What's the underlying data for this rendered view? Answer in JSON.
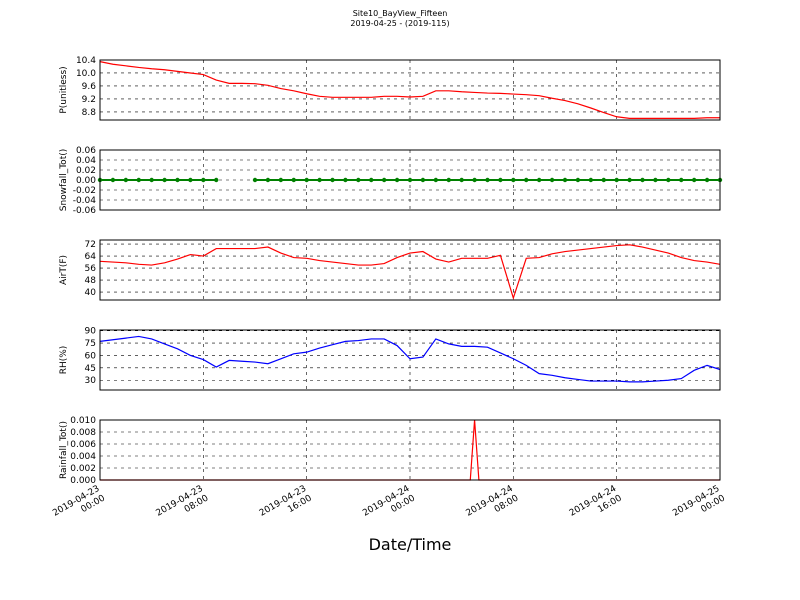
{
  "chart_data": [
    {
      "type": "line",
      "title": "Site10_BayView_Fifteen",
      "subtitle": "2019-04-25 - (2019-115)",
      "ylabel": "P(unitless)",
      "color": "#ff0000",
      "grid": true,
      "xlim": [
        "2019-04-23 00:00",
        "2019-04-25 00:00"
      ],
      "xticks": [
        "2019-04-23 00:00",
        "2019-04-23 08:00",
        "2019-04-23 16:00",
        "2019-04-24 00:00",
        "2019-04-24 08:00",
        "2019-04-24 16:00",
        "2019-04-25 00:00"
      ],
      "ylim": [
        8.55,
        10.4
      ],
      "yticks": [
        8.8,
        9.2,
        9.6,
        {
          "value": 10,
          "label": "10.0"
        },
        10.4
      ],
      "x": [
        "2019-04-23 00:00",
        "2019-04-23 01:00",
        "2019-04-23 02:00",
        "2019-04-23 03:00",
        "2019-04-23 04:00",
        "2019-04-23 05:00",
        "2019-04-23 06:00",
        "2019-04-23 07:00",
        "2019-04-23 08:00",
        "2019-04-23 09:00",
        "2019-04-23 10:00",
        "2019-04-23 11:00",
        "2019-04-23 12:00",
        "2019-04-23 13:00",
        "2019-04-23 14:00",
        "2019-04-23 15:00",
        "2019-04-23 16:00",
        "2019-04-23 17:00",
        "2019-04-23 18:00",
        "2019-04-23 19:00",
        "2019-04-23 20:00",
        "2019-04-23 21:00",
        "2019-04-23 22:00",
        "2019-04-23 23:00",
        "2019-04-24 00:00",
        "2019-04-24 01:00",
        "2019-04-24 02:00",
        "2019-04-24 03:00",
        "2019-04-24 04:00",
        "2019-04-24 05:00",
        "2019-04-24 06:00",
        "2019-04-24 07:00",
        "2019-04-24 08:00",
        "2019-04-24 09:00",
        "2019-04-24 10:00",
        "2019-04-24 11:00",
        "2019-04-24 12:00",
        "2019-04-24 13:00",
        "2019-04-24 14:00",
        "2019-04-24 15:00",
        "2019-04-24 16:00",
        "2019-04-24 17:00",
        "2019-04-24 18:00",
        "2019-04-24 19:00",
        "2019-04-24 20:00",
        "2019-04-24 21:00",
        "2019-04-24 22:00",
        "2019-04-24 23:00",
        "2019-04-25 00:00"
      ],
      "values": [
        10.35,
        10.27,
        10.22,
        10.17,
        10.13,
        10.1,
        10.05,
        10.0,
        9.95,
        9.78,
        9.68,
        9.68,
        9.67,
        9.62,
        9.52,
        9.45,
        9.36,
        9.28,
        9.25,
        9.25,
        9.25,
        9.25,
        9.28,
        9.28,
        9.26,
        9.28,
        9.45,
        9.45,
        9.42,
        9.4,
        9.38,
        9.37,
        9.35,
        9.33,
        9.3,
        9.22,
        9.15,
        9.05,
        8.92,
        8.78,
        8.65,
        8.6,
        8.6,
        8.6,
        8.6,
        8.6,
        8.6,
        8.62,
        8.62
      ]
    },
    {
      "type": "line",
      "ylabel": "Snowfall_Tot()",
      "color": "#008000",
      "markers": true,
      "grid": true,
      "xlim": [
        "2019-04-23 00:00",
        "2019-04-25 00:00"
      ],
      "xticks": [
        "2019-04-23 00:00",
        "2019-04-23 08:00",
        "2019-04-23 16:00",
        "2019-04-24 00:00",
        "2019-04-24 08:00",
        "2019-04-24 16:00",
        "2019-04-25 00:00"
      ],
      "ylim": [
        -0.06,
        0.06
      ],
      "yticks": [
        -0.06,
        -0.04,
        -0.02,
        {
          "value": 0,
          "label": "0.00"
        },
        0.02,
        0.04,
        0.06
      ],
      "x": [
        "2019-04-23 00:00",
        "2019-04-23 01:00",
        "2019-04-23 02:00",
        "2019-04-23 03:00",
        "2019-04-23 04:00",
        "2019-04-23 05:00",
        "2019-04-23 06:00",
        "2019-04-23 07:00",
        "2019-04-23 08:00",
        "2019-04-23 09:00",
        "2019-04-23 10:00",
        "2019-04-23 11:00",
        "2019-04-23 12:00",
        "2019-04-23 13:00",
        "2019-04-23 14:00",
        "2019-04-23 15:00",
        "2019-04-23 16:00",
        "2019-04-23 17:00",
        "2019-04-23 18:00",
        "2019-04-23 19:00",
        "2019-04-23 20:00",
        "2019-04-23 21:00",
        "2019-04-23 22:00",
        "2019-04-23 23:00",
        "2019-04-24 00:00",
        "2019-04-24 01:00",
        "2019-04-24 02:00",
        "2019-04-24 03:00",
        "2019-04-24 04:00",
        "2019-04-24 05:00",
        "2019-04-24 06:00",
        "2019-04-24 07:00",
        "2019-04-24 08:00",
        "2019-04-24 09:00",
        "2019-04-24 10:00",
        "2019-04-24 11:00",
        "2019-04-24 12:00",
        "2019-04-24 13:00",
        "2019-04-24 14:00",
        "2019-04-24 15:00",
        "2019-04-24 16:00",
        "2019-04-24 17:00",
        "2019-04-24 18:00",
        "2019-04-24 19:00",
        "2019-04-24 20:00",
        "2019-04-24 21:00",
        "2019-04-24 22:00",
        "2019-04-24 23:00",
        "2019-04-25 00:00"
      ],
      "values": [
        0,
        0,
        0,
        0,
        0,
        0,
        0,
        0,
        0,
        0,
        null,
        null,
        0,
        0,
        0,
        0,
        0,
        0,
        0,
        0,
        0,
        0,
        0,
        0,
        0,
        0,
        0,
        0,
        0,
        0,
        0,
        0,
        0,
        0,
        0,
        0,
        0,
        0,
        0,
        0,
        0,
        0,
        0,
        0,
        0,
        0,
        0,
        0,
        0
      ]
    },
    {
      "type": "line",
      "ylabel": "AirT(F)",
      "color": "#ff0000",
      "grid": true,
      "xlim": [
        "2019-04-23 00:00",
        "2019-04-25 00:00"
      ],
      "xticks": [
        "2019-04-23 00:00",
        "2019-04-23 08:00",
        "2019-04-23 16:00",
        "2019-04-24 00:00",
        "2019-04-24 08:00",
        "2019-04-24 16:00",
        "2019-04-25 00:00"
      ],
      "ylim": [
        34.7,
        74.7
      ],
      "yticks": [
        40,
        48,
        56,
        64,
        72
      ],
      "x": [
        "2019-04-23 00:00",
        "2019-04-23 01:00",
        "2019-04-23 02:00",
        "2019-04-23 03:00",
        "2019-04-23 04:00",
        "2019-04-23 05:00",
        "2019-04-23 06:00",
        "2019-04-23 07:00",
        "2019-04-23 08:00",
        "2019-04-23 09:00",
        "2019-04-23 10:00",
        "2019-04-23 11:00",
        "2019-04-23 12:00",
        "2019-04-23 13:00",
        "2019-04-23 14:00",
        "2019-04-23 15:00",
        "2019-04-23 16:00",
        "2019-04-23 17:00",
        "2019-04-23 18:00",
        "2019-04-23 19:00",
        "2019-04-23 20:00",
        "2019-04-23 21:00",
        "2019-04-23 22:00",
        "2019-04-23 23:00",
        "2019-04-24 00:00",
        "2019-04-24 01:00",
        "2019-04-24 02:00",
        "2019-04-24 03:00",
        "2019-04-24 04:00",
        "2019-04-24 05:00",
        "2019-04-24 06:00",
        "2019-04-24 07:00",
        "2019-04-24 08:00",
        "2019-04-24 09:00",
        "2019-04-24 10:00",
        "2019-04-24 11:00",
        "2019-04-24 12:00",
        "2019-04-24 13:00",
        "2019-04-24 14:00",
        "2019-04-24 15:00",
        "2019-04-24 16:00",
        "2019-04-24 17:00",
        "2019-04-24 18:00",
        "2019-04-24 19:00",
        "2019-04-24 20:00",
        "2019-04-24 21:00",
        "2019-04-24 22:00",
        "2019-04-24 23:00",
        "2019-04-25 00:00"
      ],
      "values": [
        60.5,
        60,
        59.5,
        58.5,
        58,
        59.5,
        62,
        65,
        64,
        69,
        69,
        69,
        69,
        70,
        66,
        63,
        62.5,
        61,
        60,
        59,
        58,
        58,
        59,
        63,
        66,
        67,
        62,
        60,
        62.5,
        62.5,
        62.5,
        64.5,
        36,
        62.5,
        63,
        65.5,
        67,
        68,
        69,
        70,
        71,
        71.5,
        70,
        68,
        66,
        63,
        61,
        60,
        58.5
      ]
    },
    {
      "type": "line",
      "ylabel": "RH(%)",
      "color": "#0000ff",
      "grid": true,
      "xlim": [
        "2019-04-23 00:00",
        "2019-04-25 00:00"
      ],
      "xticks": [
        "2019-04-23 00:00",
        "2019-04-23 08:00",
        "2019-04-23 16:00",
        "2019-04-24 00:00",
        "2019-04-24 08:00",
        "2019-04-24 16:00",
        "2019-04-25 00:00"
      ],
      "ylim": [
        18.2,
        90.8
      ],
      "yticks": [
        30,
        45,
        60,
        75,
        90
      ],
      "x": [
        "2019-04-23 00:00",
        "2019-04-23 01:00",
        "2019-04-23 02:00",
        "2019-04-23 03:00",
        "2019-04-23 04:00",
        "2019-04-23 05:00",
        "2019-04-23 06:00",
        "2019-04-23 07:00",
        "2019-04-23 08:00",
        "2019-04-23 09:00",
        "2019-04-23 10:00",
        "2019-04-23 11:00",
        "2019-04-23 12:00",
        "2019-04-23 13:00",
        "2019-04-23 14:00",
        "2019-04-23 15:00",
        "2019-04-23 16:00",
        "2019-04-23 17:00",
        "2019-04-23 18:00",
        "2019-04-23 19:00",
        "2019-04-23 20:00",
        "2019-04-23 21:00",
        "2019-04-23 22:00",
        "2019-04-23 23:00",
        "2019-04-24 00:00",
        "2019-04-24 01:00",
        "2019-04-24 02:00",
        "2019-04-24 03:00",
        "2019-04-24 04:00",
        "2019-04-24 05:00",
        "2019-04-24 06:00",
        "2019-04-24 07:00",
        "2019-04-24 08:00",
        "2019-04-24 09:00",
        "2019-04-24 10:00",
        "2019-04-24 11:00",
        "2019-04-24 12:00",
        "2019-04-24 13:00",
        "2019-04-24 14:00",
        "2019-04-24 15:00",
        "2019-04-24 16:00",
        "2019-04-24 17:00",
        "2019-04-24 18:00",
        "2019-04-24 19:00",
        "2019-04-24 20:00",
        "2019-04-24 21:00",
        "2019-04-24 22:00",
        "2019-04-24 23:00",
        "2019-04-25 00:00"
      ],
      "values": [
        77,
        79,
        81,
        83,
        80,
        74,
        68,
        60,
        55,
        46,
        54,
        53,
        52,
        50,
        56,
        62,
        64,
        69,
        73,
        77,
        78,
        80,
        80,
        72,
        56,
        58,
        80,
        74,
        71,
        71,
        70,
        63,
        56,
        48,
        38,
        36,
        33,
        31,
        29,
        29,
        29,
        28,
        28,
        29,
        30,
        32,
        42,
        48,
        43
      ]
    },
    {
      "type": "line",
      "ylabel": "Rainfall_Tot()",
      "xlabel": "Date/Time",
      "color": "#ff0000",
      "grid": true,
      "xlim": [
        "2019-04-23 00:00",
        "2019-04-25 00:00"
      ],
      "xticks": [
        "2019-04-23 00:00",
        "2019-04-23 08:00",
        "2019-04-23 16:00",
        "2019-04-24 00:00",
        "2019-04-24 08:00",
        "2019-04-24 16:00",
        "2019-04-25 00:00"
      ],
      "ylim": [
        0,
        0.01
      ],
      "yticks": [
        {
          "value": 0,
          "label": "0.000"
        },
        0.002,
        0.004,
        0.006,
        0.008,
        {
          "value": 0.01,
          "label": "0.010"
        }
      ],
      "x": [
        "2019-04-23 00:00",
        "2019-04-23 01:00",
        "2019-04-23 02:00",
        "2019-04-23 03:00",
        "2019-04-23 04:00",
        "2019-04-23 05:00",
        "2019-04-23 06:00",
        "2019-04-23 07:00",
        "2019-04-23 08:00",
        "2019-04-23 09:00",
        "2019-04-23 10:00",
        "2019-04-23 11:00",
        "2019-04-23 12:00",
        "2019-04-23 13:00",
        "2019-04-23 14:00",
        "2019-04-23 15:00",
        "2019-04-23 16:00",
        "2019-04-23 17:00",
        "2019-04-23 18:00",
        "2019-04-23 19:00",
        "2019-04-23 20:00",
        "2019-04-23 21:00",
        "2019-04-23 22:00",
        "2019-04-23 23:00",
        "2019-04-24 00:00",
        "2019-04-24 01:00",
        "2019-04-24 02:00",
        "2019-04-24 03:00",
        "2019-04-24 04:00",
        "2019-04-24 04:40",
        "2019-04-24 05:00",
        "2019-04-24 05:20",
        "2019-04-24 06:00",
        "2019-04-24 07:00",
        "2019-04-24 08:00",
        "2019-04-24 09:00",
        "2019-04-24 10:00",
        "2019-04-24 11:00",
        "2019-04-24 12:00",
        "2019-04-24 13:00",
        "2019-04-24 14:00",
        "2019-04-24 15:00",
        "2019-04-24 16:00",
        "2019-04-24 17:00",
        "2019-04-24 18:00",
        "2019-04-24 19:00",
        "2019-04-24 20:00",
        "2019-04-24 21:00",
        "2019-04-24 22:00",
        "2019-04-24 23:00",
        "2019-04-25 00:00"
      ],
      "values": [
        0,
        0,
        0,
        0,
        0,
        0,
        0,
        0,
        0,
        0,
        0,
        0,
        0,
        0,
        0,
        0,
        0,
        0,
        0,
        0,
        0,
        0,
        0,
        0,
        0,
        0,
        0,
        0,
        0,
        0,
        0.01,
        0,
        0,
        0,
        0,
        0,
        0,
        0,
        0,
        0,
        0,
        0,
        0,
        0,
        0,
        0,
        0,
        0,
        0,
        0,
        0
      ]
    }
  ]
}
